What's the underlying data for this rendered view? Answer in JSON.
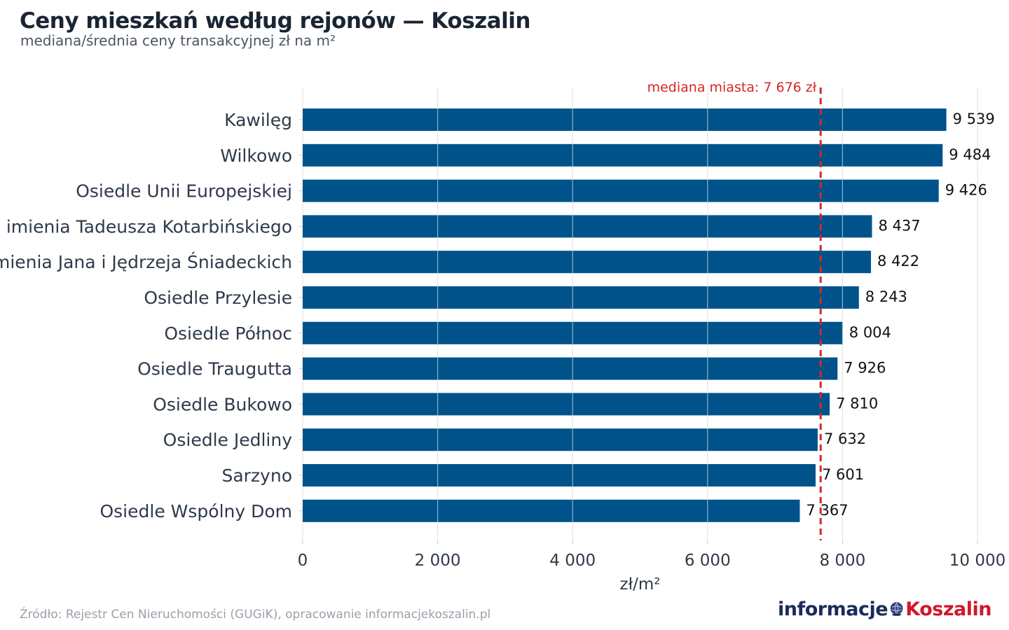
{
  "header": {
    "title": "Ceny mieszkań według rejonów — Koszalin",
    "subtitle": "mediana/średnia ceny transakcyjnej zł na m²"
  },
  "footer": {
    "source": "Źródło: Rejestr Cen Nieruchomości (GUGiK), opracowanie informacjekoszalin.pl",
    "logo_part1": "informacje",
    "logo_part2": "Koszalin"
  },
  "colors": {
    "bar": "#00538a",
    "median_line": "#d62728",
    "grid": "#e6e6e6",
    "text": "#2f3a4a"
  },
  "chart_data": {
    "type": "bar",
    "orientation": "horizontal",
    "categories": [
      "Kawilęg",
      "Wilkowo",
      "Osiedle Unii Europejskiej",
      "Osiedle imienia Tadeusza Kotarbińskiego",
      "Osiedle imienia Jana i Jędrzeja Śniadeckich",
      "Osiedle Przylesie",
      "Osiedle Północ",
      "Osiedle Traugutta",
      "Osiedle Bukowo",
      "Osiedle Jedliny",
      "Sarzyno",
      "Osiedle Wspólny Dom"
    ],
    "values": [
      9539,
      9484,
      9426,
      8437,
      8422,
      8243,
      8004,
      7926,
      7810,
      7632,
      7601,
      7367
    ],
    "value_labels": [
      "9 539",
      "9 484",
      "9 426",
      "8 437",
      "8 422",
      "8 243",
      "8 004",
      "7 926",
      "7 810",
      "7 632",
      "7 601",
      "7 367"
    ],
    "xlabel": "zł/m²",
    "xlim": [
      0,
      10000
    ],
    "xticks": [
      0,
      2000,
      4000,
      6000,
      8000,
      10000
    ],
    "xtick_labels": [
      "0",
      "2 000",
      "4 000",
      "6 000",
      "8 000",
      "10 000"
    ],
    "reference_line": {
      "value": 7676,
      "label": "mediana miasta: 7 676 zł"
    },
    "grid": true
  }
}
